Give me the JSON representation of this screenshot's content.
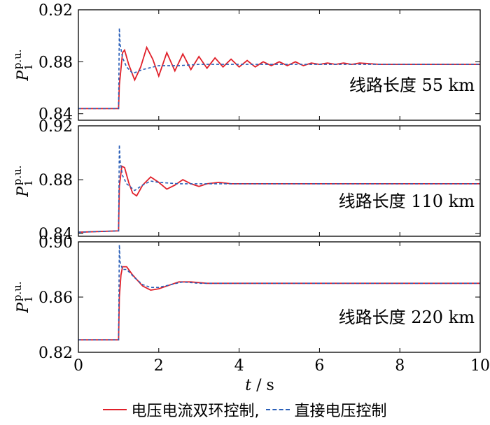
{
  "chart_data": {
    "type": "line",
    "xlabel": "t / s",
    "x_ticks": [
      "0",
      "2",
      "4",
      "6",
      "8",
      "10"
    ],
    "xlim": [
      0,
      10
    ],
    "ylabel": "P1p.u.",
    "colors": {
      "series1": "#e0202a",
      "series2": "#2a5fb8"
    },
    "legend": {
      "placement": "bottom",
      "entries": [
        "电压电流双环控制,",
        "直接电压控制"
      ]
    },
    "panels": [
      {
        "label": "线路长度 55 km",
        "ylim": [
          0.835,
          0.92
        ],
        "y_ticks": [
          "0.92",
          "0.88",
          "0.84"
        ],
        "series": [
          {
            "name": "电压电流双环控制,",
            "x": [
              0,
              1.0,
              1.02,
              1.1,
              1.15,
              1.25,
              1.4,
              1.55,
              1.7,
              1.85,
              2.0,
              2.2,
              2.4,
              2.6,
              2.8,
              3.0,
              3.2,
              3.4,
              3.6,
              3.8,
              4.0,
              4.2,
              4.4,
              4.6,
              4.8,
              5.0,
              5.2,
              5.4,
              5.6,
              5.8,
              6.0,
              6.2,
              6.4,
              6.6,
              6.8,
              7.0,
              7.5,
              8.0,
              9.0,
              10.0
            ],
            "y": [
              0.844,
              0.844,
              0.862,
              0.887,
              0.889,
              0.878,
              0.866,
              0.876,
              0.891,
              0.882,
              0.869,
              0.887,
              0.873,
              0.886,
              0.874,
              0.884,
              0.875,
              0.883,
              0.876,
              0.882,
              0.876,
              0.881,
              0.876,
              0.88,
              0.877,
              0.88,
              0.877,
              0.88,
              0.877,
              0.879,
              0.878,
              0.879,
              0.878,
              0.879,
              0.878,
              0.879,
              0.878,
              0.878,
              0.878,
              0.878
            ]
          },
          {
            "name": "直接电压控制",
            "x": [
              0,
              1.0,
              1.02,
              1.04,
              1.1,
              1.2,
              1.35,
              1.6,
              2.0,
              2.5,
              3.0,
              3.5,
              4.0,
              5.0,
              6.0,
              8.0,
              10.0
            ],
            "y": [
              0.844,
              0.844,
              0.906,
              0.893,
              0.883,
              0.876,
              0.871,
              0.874,
              0.877,
              0.877,
              0.878,
              0.878,
              0.878,
              0.878,
              0.878,
              0.878,
              0.878
            ]
          }
        ]
      },
      {
        "label": "线路长度 110 km",
        "ylim": [
          0.838,
          0.92
        ],
        "y_ticks": [
          "0.92",
          "0.88",
          "0.84"
        ],
        "series": [
          {
            "name": "电压电流双环控制,",
            "x": [
              0,
              1.0,
              1.02,
              1.08,
              1.15,
              1.25,
              1.35,
              1.45,
              1.6,
              1.8,
              2.0,
              2.2,
              2.4,
              2.6,
              2.8,
              3.0,
              3.2,
              3.5,
              3.8,
              4.2,
              5.0,
              6.0,
              10.0
            ],
            "y": [
              0.841,
              0.842,
              0.875,
              0.89,
              0.889,
              0.878,
              0.87,
              0.868,
              0.876,
              0.882,
              0.878,
              0.873,
              0.876,
              0.88,
              0.877,
              0.875,
              0.877,
              0.878,
              0.877,
              0.877,
              0.877,
              0.877,
              0.877
            ]
          },
          {
            "name": "直接电压控制",
            "x": [
              0,
              1.0,
              1.02,
              1.04,
              1.1,
              1.2,
              1.4,
              1.6,
              1.8,
              2.0,
              2.5,
              3.0,
              3.5,
              4.0,
              6.0,
              10.0
            ],
            "y": [
              0.841,
              0.842,
              0.906,
              0.893,
              0.883,
              0.877,
              0.872,
              0.876,
              0.879,
              0.878,
              0.877,
              0.877,
              0.877,
              0.877,
              0.877,
              0.877
            ]
          }
        ]
      },
      {
        "label": "线路长度 220 km",
        "ylim": [
          0.82,
          0.9
        ],
        "y_ticks": [
          "0.90",
          "0.86",
          "0.82"
        ],
        "series": [
          {
            "name": "电压电流双环控制,",
            "x": [
              0,
              1.0,
              1.02,
              1.06,
              1.1,
              1.2,
              1.35,
              1.6,
              1.8,
              2.0,
              2.2,
              2.5,
              2.8,
              3.2,
              4.0,
              5.0,
              10.0
            ],
            "y": [
              0.829,
              0.829,
              0.86,
              0.876,
              0.882,
              0.882,
              0.876,
              0.868,
              0.865,
              0.866,
              0.868,
              0.871,
              0.871,
              0.87,
              0.87,
              0.87,
              0.87
            ]
          },
          {
            "name": "直接电压控制",
            "x": [
              0,
              1.0,
              1.02,
              1.04,
              1.1,
              1.2,
              1.4,
              1.6,
              1.8,
              2.0,
              2.3,
              2.6,
              3.0,
              4.0,
              10.0
            ],
            "y": [
              0.829,
              0.829,
              0.898,
              0.885,
              0.88,
              0.88,
              0.874,
              0.869,
              0.867,
              0.867,
              0.869,
              0.871,
              0.87,
              0.87,
              0.87
            ]
          }
        ]
      }
    ]
  }
}
